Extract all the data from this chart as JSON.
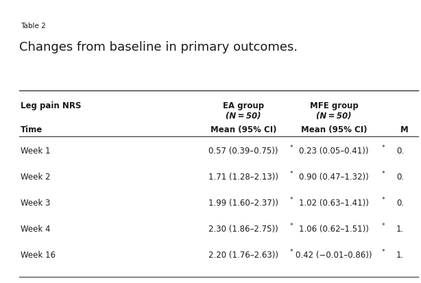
{
  "table_label": "Table 2",
  "title": "Changes from baseline in primary outcomes.",
  "background_color": "#ffffff",
  "text_color": "#1a1a1a",
  "line_color": "#333333",
  "font_size_table_label": 7.5,
  "font_size_title": 13,
  "font_size_header": 8.5,
  "font_size_body": 8.5,
  "rows": [
    [
      "Week 1",
      "0.57 (0.39–0.75)",
      "0.23 (0.05–0.41)",
      "0."
    ],
    [
      "Week 2",
      "1.71 (1.28–2.13)",
      "0.90 (0.47–1.32)",
      "0."
    ],
    [
      "Week 3",
      "1.99 (1.60–2.37)",
      "1.02 (0.63–1.41)",
      "0."
    ],
    [
      "Week 4",
      "2.30 (1.86–2.75)",
      "1.06 (0.62–1.51)",
      "1."
    ],
    [
      "Week 16",
      "2.20 (1.76–2.63)",
      "0.42 (−0.01–0.86)",
      "1."
    ]
  ]
}
